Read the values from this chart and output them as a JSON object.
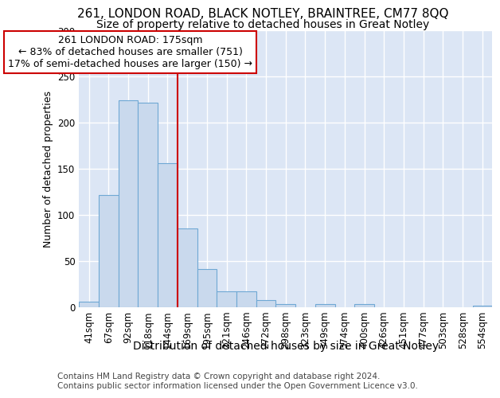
{
  "title1": "261, LONDON ROAD, BLACK NOTLEY, BRAINTREE, CM77 8QQ",
  "title2": "Size of property relative to detached houses in Great Notley",
  "xlabel": "Distribution of detached houses by size in Great Notley",
  "ylabel": "Number of detached properties",
  "bar_color": "#c9d9ed",
  "bar_edge_color": "#6fa8d4",
  "background_color": "#dce6f5",
  "grid_color": "#ffffff",
  "categories": [
    "41sqm",
    "67sqm",
    "92sqm",
    "118sqm",
    "144sqm",
    "169sqm",
    "195sqm",
    "221sqm",
    "246sqm",
    "272sqm",
    "298sqm",
    "323sqm",
    "349sqm",
    "374sqm",
    "400sqm",
    "426sqm",
    "451sqm",
    "477sqm",
    "503sqm",
    "528sqm",
    "554sqm"
  ],
  "values": [
    6,
    122,
    224,
    222,
    156,
    85,
    41,
    17,
    17,
    8,
    3,
    0,
    3,
    0,
    3,
    0,
    0,
    0,
    0,
    0,
    2
  ],
  "ylim": [
    0,
    300
  ],
  "yticks": [
    0,
    50,
    100,
    150,
    200,
    250,
    300
  ],
  "property_line_color": "#cc0000",
  "property_line_x": 4.5,
  "annotation_text": "261 LONDON ROAD: 175sqm\n← 83% of detached houses are smaller (751)\n17% of semi-detached houses are larger (150) →",
  "annotation_box_color": "#ffffff",
  "annotation_box_edge": "#cc0000",
  "footer": "Contains HM Land Registry data © Crown copyright and database right 2024.\nContains public sector information licensed under the Open Government Licence v3.0.",
  "title1_fontsize": 11,
  "title2_fontsize": 10,
  "xlabel_fontsize": 10,
  "ylabel_fontsize": 9,
  "tick_fontsize": 8.5,
  "annotation_fontsize": 9,
  "footer_fontsize": 7.5
}
